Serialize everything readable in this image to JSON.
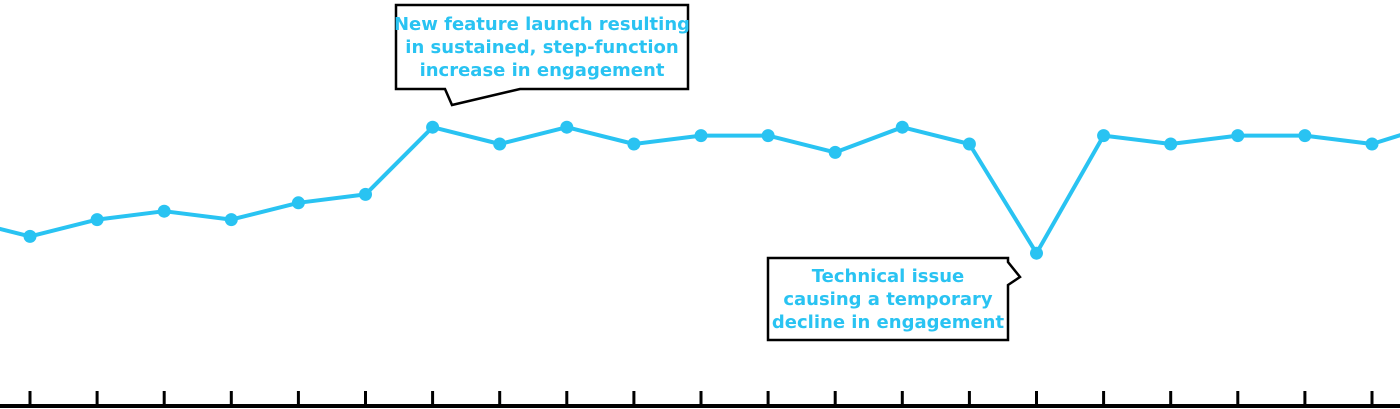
{
  "chart_data": {
    "type": "line",
    "title": "",
    "xlabel": "",
    "ylabel": "",
    "grid": false,
    "legend": "none",
    "line_color": "#29C3F2",
    "annotation_text_color": "#29C3F2",
    "annotation_border_color": "#000000",
    "axis_color": "#000000",
    "series": [
      {
        "values": [
          26,
          24,
          26,
          27,
          26,
          28,
          29,
          37,
          35,
          37,
          35,
          36,
          36,
          34,
          37,
          35,
          22,
          36,
          35,
          36,
          36,
          35,
          37.5
        ]
      }
    ],
    "annotations": [
      {
        "id": "launch",
        "point_index": 7,
        "lines": [
          "New feature launch resulting",
          "in sustained, step-function",
          "increase in engagement"
        ]
      },
      {
        "id": "issue",
        "point_index": 16,
        "lines": [
          "Technical issue",
          "causing a temporary",
          "decline in engagement"
        ]
      }
    ]
  }
}
